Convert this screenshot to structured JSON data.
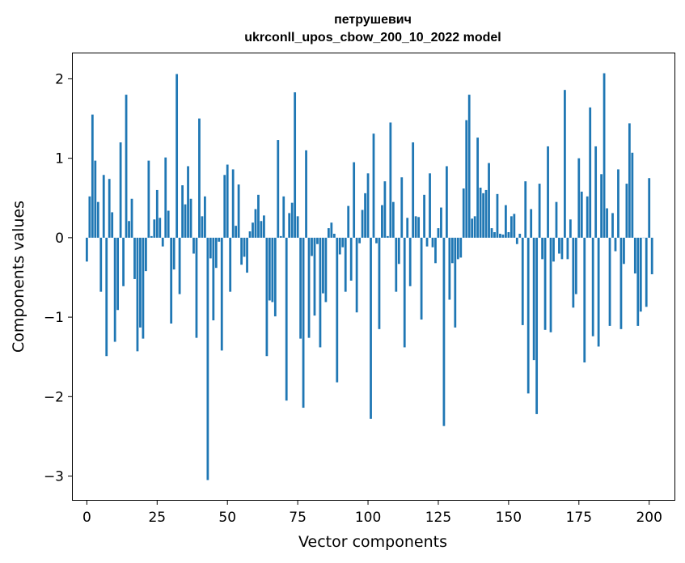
{
  "chart_data": {
    "type": "bar",
    "title_line1": "петрушевич",
    "title_line2": "ukrconll_upos_cbow_200_10_2022 model",
    "xlabel": "Vector components",
    "ylabel": "Components values",
    "xlim": [
      -5,
      209
    ],
    "ylim": [
      -3.3,
      2.32
    ],
    "xticks": [
      0,
      25,
      50,
      75,
      100,
      125,
      150,
      175,
      200
    ],
    "xtick_labels": [
      "0",
      "25",
      "50",
      "75",
      "100",
      "125",
      "150",
      "175",
      "200"
    ],
    "yticks": [
      -3,
      -2,
      -1,
      0,
      1,
      2
    ],
    "ytick_labels": [
      "−3",
      "−2",
      "−1",
      "0",
      "1",
      "2"
    ],
    "bar_color": "#1f77b4",
    "values": [
      -0.3,
      0.52,
      1.55,
      0.97,
      0.45,
      -0.68,
      0.79,
      -1.49,
      0.74,
      0.32,
      -1.31,
      -0.91,
      1.2,
      -0.61,
      1.8,
      0.21,
      0.49,
      -0.52,
      -1.43,
      -1.13,
      -1.27,
      -0.42,
      0.97,
      0.02,
      0.23,
      0.6,
      0.25,
      -0.11,
      1.01,
      0.34,
      -1.08,
      -0.4,
      2.06,
      -0.71,
      0.66,
      0.42,
      0.9,
      0.49,
      -0.2,
      -1.26,
      1.5,
      0.27,
      0.52,
      -3.05,
      -0.26,
      -1.04,
      -0.38,
      -0.05,
      -1.42,
      0.79,
      0.92,
      -0.68,
      0.86,
      0.15,
      0.67,
      -0.34,
      -0.24,
      -0.44,
      0.08,
      0.19,
      0.36,
      0.54,
      0.21,
      0.28,
      -1.49,
      -0.79,
      -0.81,
      -0.99,
      1.23,
      0.02,
      0.52,
      -2.05,
      0.31,
      0.44,
      1.83,
      0.27,
      -1.27,
      -2.14,
      1.1,
      -1.26,
      -0.23,
      -0.98,
      -0.08,
      -1.38,
      -0.7,
      -0.81,
      0.12,
      0.19,
      0.05,
      -1.82,
      -0.21,
      -0.12,
      -0.68,
      0.4,
      -0.54,
      0.95,
      -0.94,
      -0.07,
      0.35,
      0.56,
      0.81,
      -2.28,
      1.31,
      -0.07,
      -1.15,
      0.41,
      0.71,
      0.02,
      1.45,
      0.45,
      -0.68,
      -0.33,
      0.76,
      -1.38,
      0.25,
      -0.61,
      1.2,
      0.27,
      0.26,
      -1.03,
      0.54,
      -0.11,
      0.81,
      -0.12,
      -0.32,
      0.12,
      0.38,
      -2.37,
      0.9,
      -0.78,
      -0.32,
      -1.13,
      -0.27,
      -0.25,
      0.62,
      1.48,
      1.8,
      0.24,
      0.27,
      1.26,
      0.63,
      0.56,
      0.6,
      0.94,
      0.12,
      0.07,
      0.55,
      0.05,
      0.04,
      0.41,
      0.07,
      0.27,
      0.3,
      -0.08,
      0.05,
      -1.1,
      0.71,
      -1.96,
      0.36,
      -1.54,
      -2.22,
      0.68,
      -0.27,
      -1.16,
      1.15,
      -1.19,
      -0.3,
      0.45,
      -0.2,
      -0.27,
      1.86,
      -0.27,
      0.23,
      -0.88,
      -0.71,
      1.0,
      0.58,
      -1.57,
      0.52,
      1.64,
      -1.24,
      1.15,
      -1.37,
      0.8,
      2.07,
      0.37,
      -1.11,
      0.31,
      -0.17,
      0.86,
      -1.15,
      -0.33,
      0.68,
      1.44,
      1.07,
      -0.45,
      -1.11,
      -0.93,
      0.0,
      -0.87,
      0.75,
      -0.46
    ]
  }
}
